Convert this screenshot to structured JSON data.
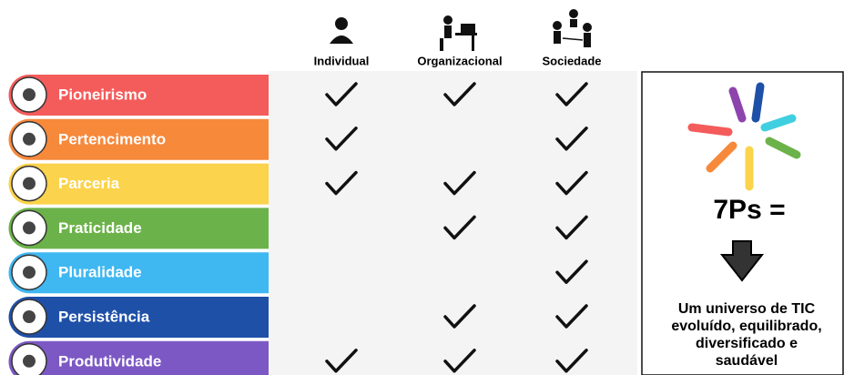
{
  "columns": [
    "Individual",
    "Organizacional",
    "Sociedade"
  ],
  "rows": [
    {
      "label": "Pioneirismo",
      "color": "#f45b5b",
      "checks": [
        true,
        true,
        true
      ]
    },
    {
      "label": "Pertencimento",
      "color": "#f7893b",
      "checks": [
        true,
        false,
        true
      ]
    },
    {
      "label": "Parceria",
      "color": "#fbd34c",
      "checks": [
        true,
        true,
        true
      ]
    },
    {
      "label": "Praticidade",
      "color": "#6cb24a",
      "checks": [
        false,
        true,
        true
      ]
    },
    {
      "label": "Pluralidade",
      "color": "#3fb7f1",
      "checks": [
        false,
        false,
        true
      ]
    },
    {
      "label": "Persistência",
      "color": "#1f50a8",
      "checks": [
        false,
        true,
        true
      ]
    },
    {
      "label": "Produtividade",
      "color": "#7c58c4",
      "checks": [
        true,
        true,
        true
      ]
    }
  ],
  "summary": {
    "title": "7Ps =",
    "lines": [
      "Um universo de TIC",
      "evoluído, equilibrado,",
      "diversificado e",
      "saudável"
    ]
  }
}
